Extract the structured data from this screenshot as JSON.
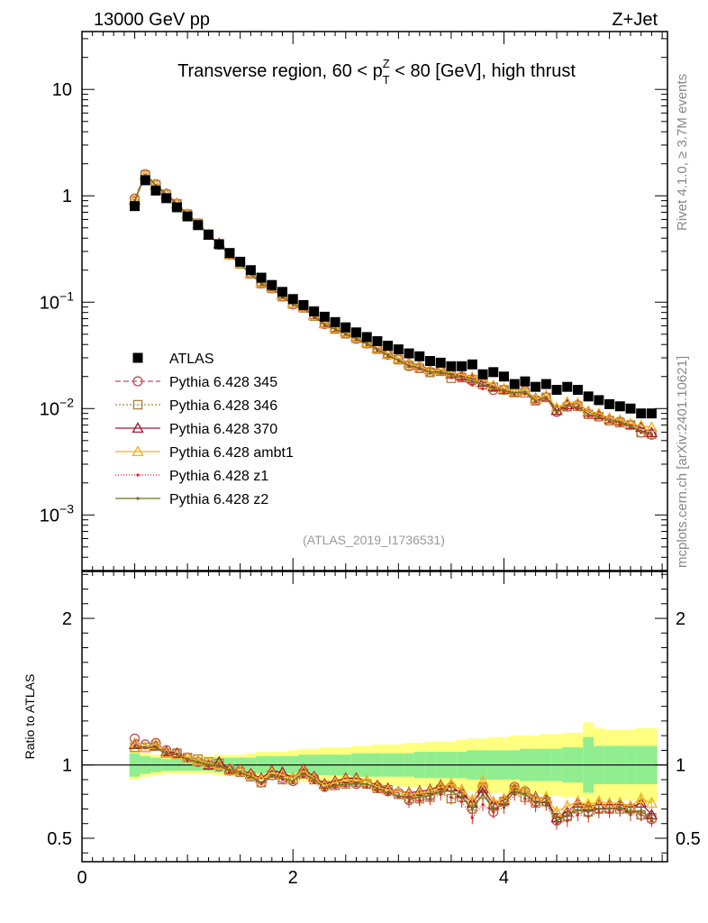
{
  "header": {
    "left": "13000 GeV pp",
    "right": "Z+Jet"
  },
  "side": {
    "rivet": "Rivet 4.1.0, ≥ 3.7M events",
    "mcplots": "mcplots.cern.ch [arXiv:2401.10621]"
  },
  "ratio_ylabel": "Ratio to ATLAS",
  "chart_data": {
    "type": "scatter",
    "title": "Transverse region, 60 < p_T^Z < 80 [GeV], high thrust",
    "title_parts": {
      "pre": "Transverse region, 60 < p",
      "sup": "Z",
      "sub": "T",
      "post": " < 80 [GeV], high thrust"
    },
    "analysis": "(ATLAS_2019_I1736531)",
    "xlim": [
      0,
      5.55
    ],
    "xticks": [
      0,
      2,
      4
    ],
    "main": {
      "yscale": "log",
      "ylim": [
        0.0003,
        35
      ],
      "yticks": [
        {
          "v": 10,
          "base": "10",
          "exp": ""
        },
        {
          "v": 1,
          "base": "1",
          "exp": ""
        },
        {
          "v": 0.1,
          "base": "10",
          "exp": "−1"
        },
        {
          "v": 0.01,
          "base": "10",
          "exp": "−2"
        },
        {
          "v": 0.001,
          "base": "10",
          "exp": "−3"
        }
      ]
    },
    "ratio": {
      "ylim": [
        0.34,
        2.32
      ],
      "yticks": [
        0.5,
        1,
        2
      ],
      "ytick_labels": [
        "0.5",
        "1",
        "2"
      ]
    },
    "x": [
      0.5,
      0.6,
      0.7,
      0.8,
      0.9,
      1.0,
      1.1,
      1.2,
      1.3,
      1.4,
      1.5,
      1.6,
      1.7,
      1.8,
      1.9,
      2.0,
      2.1,
      2.2,
      2.3,
      2.4,
      2.5,
      2.6,
      2.7,
      2.8,
      2.9,
      3.0,
      3.1,
      3.2,
      3.3,
      3.4,
      3.5,
      3.6,
      3.7,
      3.8,
      3.9,
      4.0,
      4.1,
      4.2,
      4.3,
      4.4,
      4.5,
      4.6,
      4.7,
      4.8,
      4.9,
      5.0,
      5.1,
      5.2,
      5.3,
      5.4
    ],
    "atlas": [
      0.8,
      1.4,
      1.12,
      0.95,
      0.78,
      0.64,
      0.53,
      0.43,
      0.35,
      0.29,
      0.24,
      0.2,
      0.17,
      0.145,
      0.125,
      0.107,
      0.094,
      0.082,
      0.073,
      0.065,
      0.058,
      0.052,
      0.047,
      0.043,
      0.039,
      0.036,
      0.033,
      0.031,
      0.028,
      0.027,
      0.025,
      0.025,
      0.026,
      0.021,
      0.022,
      0.02,
      0.017,
      0.018,
      0.016,
      0.017,
      0.015,
      0.016,
      0.015,
      0.013,
      0.012,
      0.011,
      0.0105,
      0.01,
      0.009,
      0.009
    ],
    "band_inner": [
      0.08,
      0.06,
      0.05,
      0.04,
      0.04,
      0.04,
      0.04,
      0.04,
      0.05,
      0.05,
      0.05,
      0.05,
      0.06,
      0.06,
      0.06,
      0.06,
      0.07,
      0.07,
      0.07,
      0.07,
      0.07,
      0.08,
      0.08,
      0.08,
      0.08,
      0.08,
      0.08,
      0.09,
      0.09,
      0.09,
      0.09,
      0.09,
      0.1,
      0.1,
      0.1,
      0.1,
      0.1,
      0.11,
      0.11,
      0.11,
      0.11,
      0.12,
      0.12,
      0.19,
      0.13,
      0.13,
      0.13,
      0.13,
      0.13,
      0.13
    ],
    "band_outer": [
      0.1,
      0.08,
      0.07,
      0.06,
      0.06,
      0.06,
      0.06,
      0.06,
      0.07,
      0.07,
      0.07,
      0.08,
      0.09,
      0.09,
      0.09,
      0.1,
      0.11,
      0.11,
      0.12,
      0.12,
      0.12,
      0.13,
      0.13,
      0.14,
      0.14,
      0.14,
      0.15,
      0.15,
      0.16,
      0.16,
      0.16,
      0.17,
      0.18,
      0.18,
      0.19,
      0.19,
      0.2,
      0.2,
      0.2,
      0.21,
      0.21,
      0.22,
      0.22,
      0.29,
      0.25,
      0.24,
      0.24,
      0.24,
      0.25,
      0.25
    ],
    "series": [
      {
        "name": "Pythia 6.428 345",
        "color": "#c05060",
        "marker": "circle-open",
        "dash": "6,3",
        "ratio": [
          1.18,
          1.14,
          1.15,
          1.1,
          1.08,
          1.05,
          1.02,
          1.0,
          0.99,
          0.96,
          0.96,
          0.93,
          0.88,
          0.93,
          0.91,
          0.89,
          0.95,
          0.91,
          0.85,
          0.87,
          0.88,
          0.87,
          0.87,
          0.85,
          0.82,
          0.81,
          0.76,
          0.78,
          0.79,
          0.84,
          0.85,
          0.8,
          0.7,
          0.85,
          0.68,
          0.75,
          0.85,
          0.82,
          0.75,
          0.75,
          0.62,
          0.65,
          0.72,
          0.68,
          0.7,
          0.7,
          0.72,
          0.7,
          0.66,
          0.63
        ]
      },
      {
        "name": "Pythia 6.428 346",
        "color": "#b08040",
        "marker": "square-open",
        "dash": "2,2",
        "ratio": [
          1.12,
          1.12,
          1.13,
          1.08,
          1.08,
          1.05,
          1.04,
          1.02,
          1.01,
          0.97,
          0.95,
          0.92,
          0.88,
          0.93,
          0.9,
          0.9,
          0.94,
          0.9,
          0.86,
          0.86,
          0.87,
          0.88,
          0.87,
          0.84,
          0.83,
          0.8,
          0.77,
          0.77,
          0.78,
          0.83,
          0.77,
          0.78,
          0.72,
          0.8,
          0.72,
          0.75,
          0.83,
          0.78,
          0.74,
          0.75,
          0.64,
          0.65,
          0.7,
          0.68,
          0.7,
          0.7,
          0.7,
          0.7,
          0.66,
          0.64
        ]
      },
      {
        "name": "Pythia 6.428 370",
        "color": "#a01830",
        "marker": "triangle-open",
        "dash": "",
        "ratio": [
          1.14,
          1.12,
          1.13,
          1.09,
          1.08,
          1.05,
          1.03,
          1.0,
          1.02,
          0.97,
          0.96,
          0.94,
          0.91,
          0.96,
          0.95,
          0.91,
          0.97,
          0.92,
          0.87,
          0.89,
          0.91,
          0.91,
          0.89,
          0.86,
          0.84,
          0.82,
          0.81,
          0.82,
          0.83,
          0.86,
          0.85,
          0.81,
          0.74,
          0.84,
          0.73,
          0.76,
          0.84,
          0.82,
          0.78,
          0.77,
          0.64,
          0.68,
          0.74,
          0.72,
          0.73,
          0.73,
          0.73,
          0.71,
          0.74,
          0.66
        ]
      },
      {
        "name": "Pythia 6.428 ambt1",
        "color": "#f0b020",
        "marker": "triangle-open",
        "dash": "",
        "ratio": [
          1.15,
          1.12,
          1.14,
          1.08,
          1.07,
          1.05,
          1.03,
          1.01,
          1.0,
          0.96,
          0.96,
          0.93,
          0.9,
          0.95,
          0.93,
          0.91,
          0.96,
          0.91,
          0.86,
          0.88,
          0.9,
          0.9,
          0.89,
          0.85,
          0.83,
          0.82,
          0.8,
          0.81,
          0.82,
          0.85,
          0.87,
          0.83,
          0.76,
          0.89,
          0.75,
          0.77,
          0.85,
          0.82,
          0.77,
          0.78,
          0.68,
          0.72,
          0.75,
          0.73,
          0.75,
          0.74,
          0.74,
          0.72,
          0.77,
          0.74
        ]
      },
      {
        "name": "Pythia 6.428 z1",
        "color": "#e02020",
        "marker": "dot",
        "dash": "1,2",
        "ratio": [
          1.13,
          1.12,
          1.12,
          1.07,
          1.07,
          1.03,
          1.02,
          0.99,
          1.0,
          0.95,
          0.94,
          0.92,
          0.87,
          0.92,
          0.9,
          0.88,
          0.92,
          0.88,
          0.83,
          0.85,
          0.86,
          0.86,
          0.85,
          0.82,
          0.8,
          0.78,
          0.75,
          0.76,
          0.77,
          0.8,
          0.78,
          0.75,
          0.64,
          0.73,
          0.68,
          0.71,
          0.8,
          0.77,
          0.72,
          0.73,
          0.6,
          0.62,
          0.66,
          0.65,
          0.68,
          0.68,
          0.69,
          0.66,
          0.66,
          0.62
        ]
      },
      {
        "name": "Pythia 6.428 z2",
        "color": "#707020",
        "marker": "dot",
        "dash": "",
        "ratio": [
          1.12,
          1.12,
          1.12,
          1.08,
          1.07,
          1.04,
          1.02,
          1.0,
          1.0,
          0.96,
          0.95,
          0.92,
          0.88,
          0.93,
          0.91,
          0.89,
          0.94,
          0.9,
          0.84,
          0.86,
          0.87,
          0.87,
          0.87,
          0.84,
          0.81,
          0.79,
          0.77,
          0.78,
          0.79,
          0.82,
          0.82,
          0.78,
          0.7,
          0.8,
          0.7,
          0.73,
          0.82,
          0.8,
          0.74,
          0.75,
          0.62,
          0.66,
          0.69,
          0.68,
          0.7,
          0.7,
          0.71,
          0.68,
          0.68,
          0.64
        ]
      }
    ]
  }
}
